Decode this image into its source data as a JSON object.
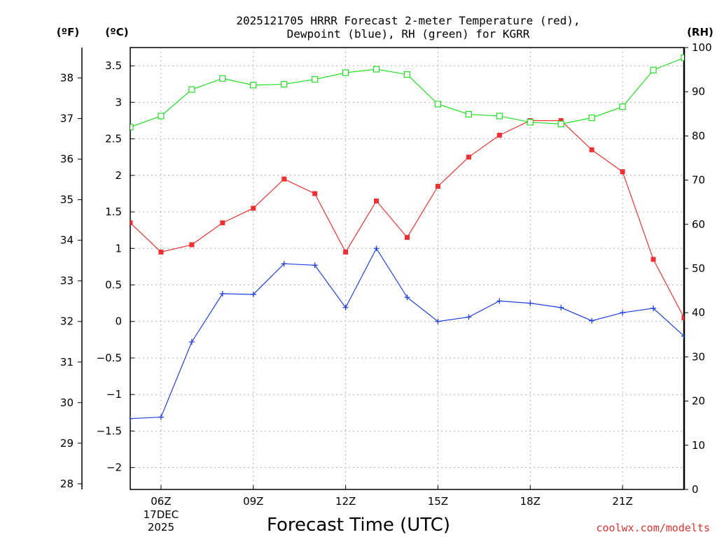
{
  "chart_data": {
    "type": "line",
    "title_line1": "2025121705 HRRR Forecast 2-meter Temperature (red),",
    "title_line2": "Dewpoint (blue), RH (green) for KGRR",
    "xlabel": "Forecast Time (UTC)",
    "credit": "coolwx.com/modelts",
    "units": {
      "fahrenheit": "(ºF)",
      "celsius": "(ºC)",
      "rh": "(RH)"
    },
    "x_hours": [
      5,
      6,
      7,
      8,
      9,
      10,
      11,
      12,
      13,
      14,
      15,
      16,
      17,
      18,
      19,
      20,
      21,
      22,
      23
    ],
    "x_ticks": [
      {
        "hour": 6,
        "label": "06Z",
        "sub1": "17DEC",
        "sub2": "2025"
      },
      {
        "hour": 9,
        "label": "09Z"
      },
      {
        "hour": 12,
        "label": "12Z"
      },
      {
        "hour": 15,
        "label": "15Z"
      },
      {
        "hour": 18,
        "label": "18Z"
      },
      {
        "hour": 21,
        "label": "21Z"
      }
    ],
    "xlim": [
      5,
      23
    ],
    "celsius_lim": [
      -2.3,
      3.75
    ],
    "celsius_ticks": [
      {
        "v": -2,
        "label": "−2"
      },
      {
        "v": -1.5,
        "label": "−1.5"
      },
      {
        "v": -1,
        "label": "−1"
      },
      {
        "v": -0.5,
        "label": "−0.5"
      },
      {
        "v": 0,
        "label": "0"
      },
      {
        "v": 0.5,
        "label": "0.5"
      },
      {
        "v": 1,
        "label": "1"
      },
      {
        "v": 1.5,
        "label": "1.5"
      },
      {
        "v": 2,
        "label": "2"
      },
      {
        "v": 2.5,
        "label": "2.5"
      },
      {
        "v": 3,
        "label": "3"
      },
      {
        "v": 3.5,
        "label": "3.5"
      }
    ],
    "fahrenheit_ticks": [
      {
        "v": 28,
        "label": "28"
      },
      {
        "v": 29,
        "label": "29"
      },
      {
        "v": 30,
        "label": "30"
      },
      {
        "v": 31,
        "label": "31"
      },
      {
        "v": 32,
        "label": "32"
      },
      {
        "v": 33,
        "label": "33"
      },
      {
        "v": 34,
        "label": "34"
      },
      {
        "v": 35,
        "label": "35"
      },
      {
        "v": 36,
        "label": "36"
      },
      {
        "v": 37,
        "label": "37"
      },
      {
        "v": 38,
        "label": "38"
      }
    ],
    "rh_lim": [
      0,
      100
    ],
    "rh_ticks": [
      {
        "v": 0,
        "label": "0"
      },
      {
        "v": 10,
        "label": "10"
      },
      {
        "v": 20,
        "label": "20"
      },
      {
        "v": 30,
        "label": "30"
      },
      {
        "v": 40,
        "label": "40"
      },
      {
        "v": 50,
        "label": "50"
      },
      {
        "v": 60,
        "label": "60"
      },
      {
        "v": 70,
        "label": "70"
      },
      {
        "v": 80,
        "label": "80"
      },
      {
        "v": 90,
        "label": "90"
      },
      {
        "v": 100,
        "label": "100"
      }
    ],
    "series": [
      {
        "name": "Temperature",
        "color": "#f03030",
        "marker": "filled-square",
        "axis": "celsius",
        "values": [
          1.35,
          0.95,
          1.05,
          1.35,
          1.55,
          1.95,
          1.75,
          0.95,
          1.65,
          1.15,
          1.85,
          2.25,
          2.55,
          2.75,
          2.75,
          2.35,
          2.05,
          0.85,
          0.05
        ]
      },
      {
        "name": "Dewpoint",
        "color": "#2040e0",
        "marker": "plus",
        "axis": "celsius",
        "values": [
          -1.33,
          -1.31,
          -0.28,
          0.38,
          0.37,
          0.79,
          0.77,
          0.19,
          1.0,
          0.33,
          0.0,
          0.06,
          0.28,
          0.25,
          0.19,
          0.01,
          0.12,
          0.18,
          -0.2
        ]
      },
      {
        "name": "RH",
        "color": "#20e020",
        "marker": "open-square",
        "axis": "rh",
        "values": [
          82,
          84.5,
          90.5,
          93,
          91.5,
          91.7,
          92.8,
          94.3,
          95.1,
          93.9,
          87.2,
          84.9,
          84.5,
          83.1,
          82.7,
          84.1,
          86.6,
          94.9,
          97.7
        ]
      }
    ]
  }
}
